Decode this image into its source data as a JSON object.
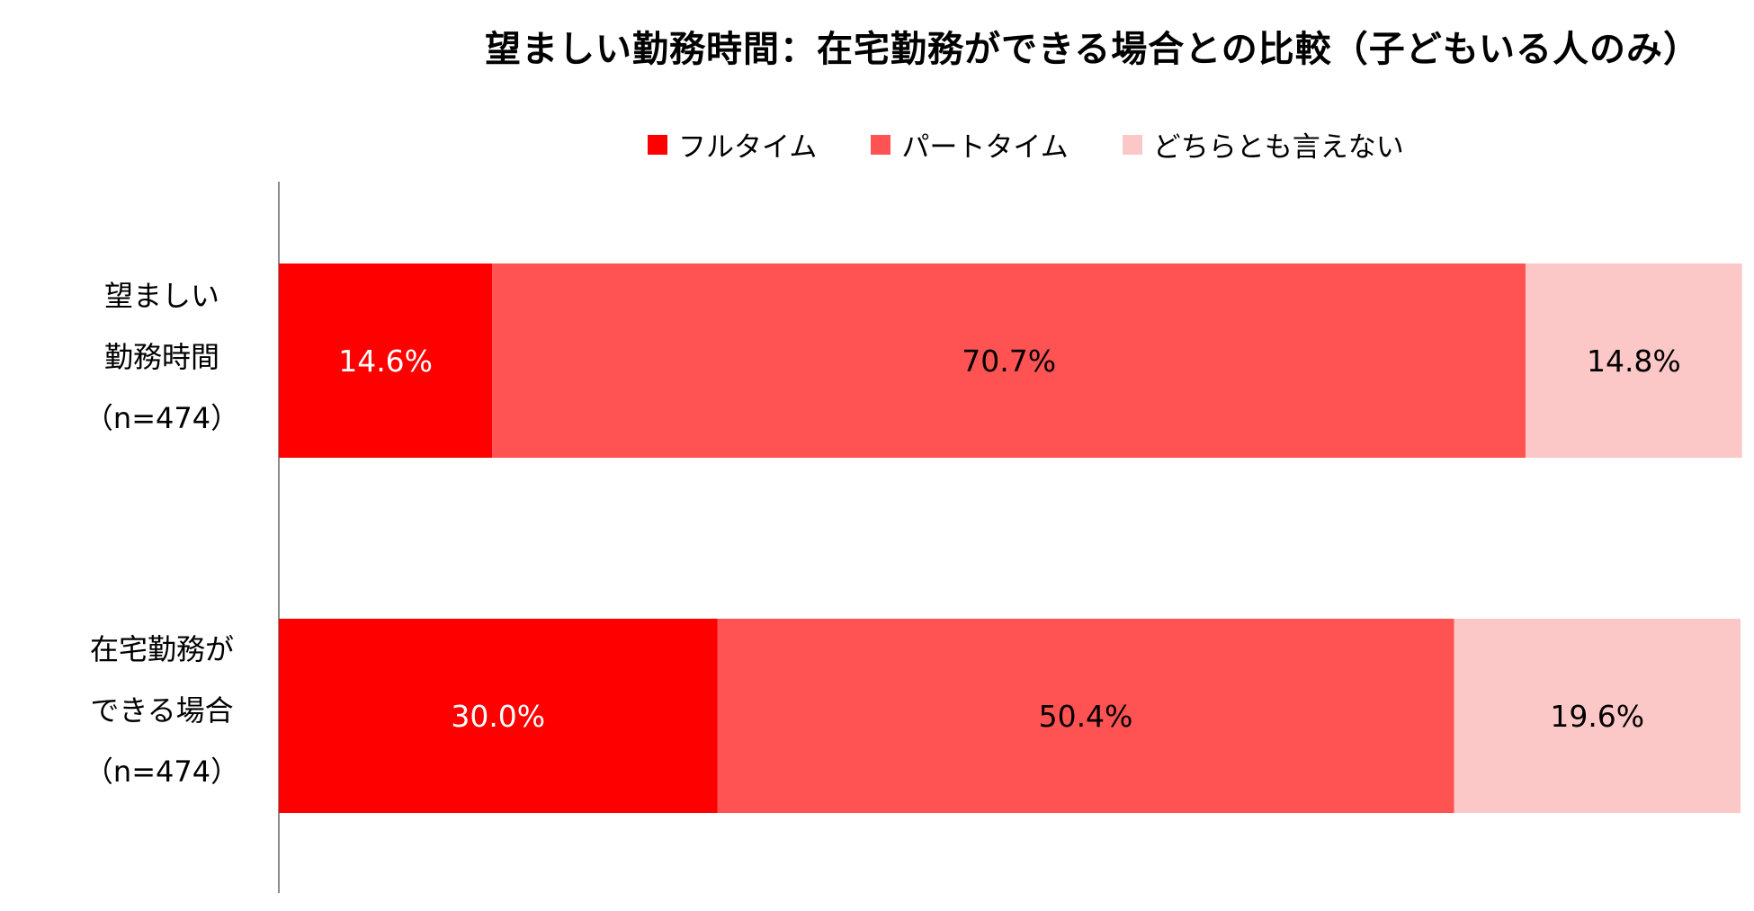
{
  "chart_data": {
    "type": "bar",
    "orientation": "horizontal",
    "stacked": true,
    "title": "望ましい勤務時間：在宅勤務ができる場合との比較（子どもいる人のみ）",
    "categories": [
      [
        "望ましい",
        "勤務時間",
        "（n=474）"
      ],
      [
        "在宅勤務が",
        "できる場合",
        "（n=474）"
      ]
    ],
    "series": [
      {
        "name": "フルタイム",
        "color": "#ff0000",
        "label_color": "#ffffff",
        "values": [
          14.6,
          30.0
        ],
        "labels": [
          "14.6%",
          "30.0%"
        ]
      },
      {
        "name": "パートタイム",
        "color": "#ff5252",
        "label_color": "#000000",
        "values": [
          70.7,
          50.4
        ],
        "labels": [
          "70.7%",
          "50.4%"
        ]
      },
      {
        "name": "どちらとも言えない",
        "color": "#fcc7c7",
        "label_color": "#000000",
        "values": [
          14.8,
          19.6
        ],
        "labels": [
          "14.8%",
          "19.6%"
        ]
      }
    ],
    "xlim": [
      0,
      100
    ],
    "legend_position": "top",
    "grid": false
  }
}
